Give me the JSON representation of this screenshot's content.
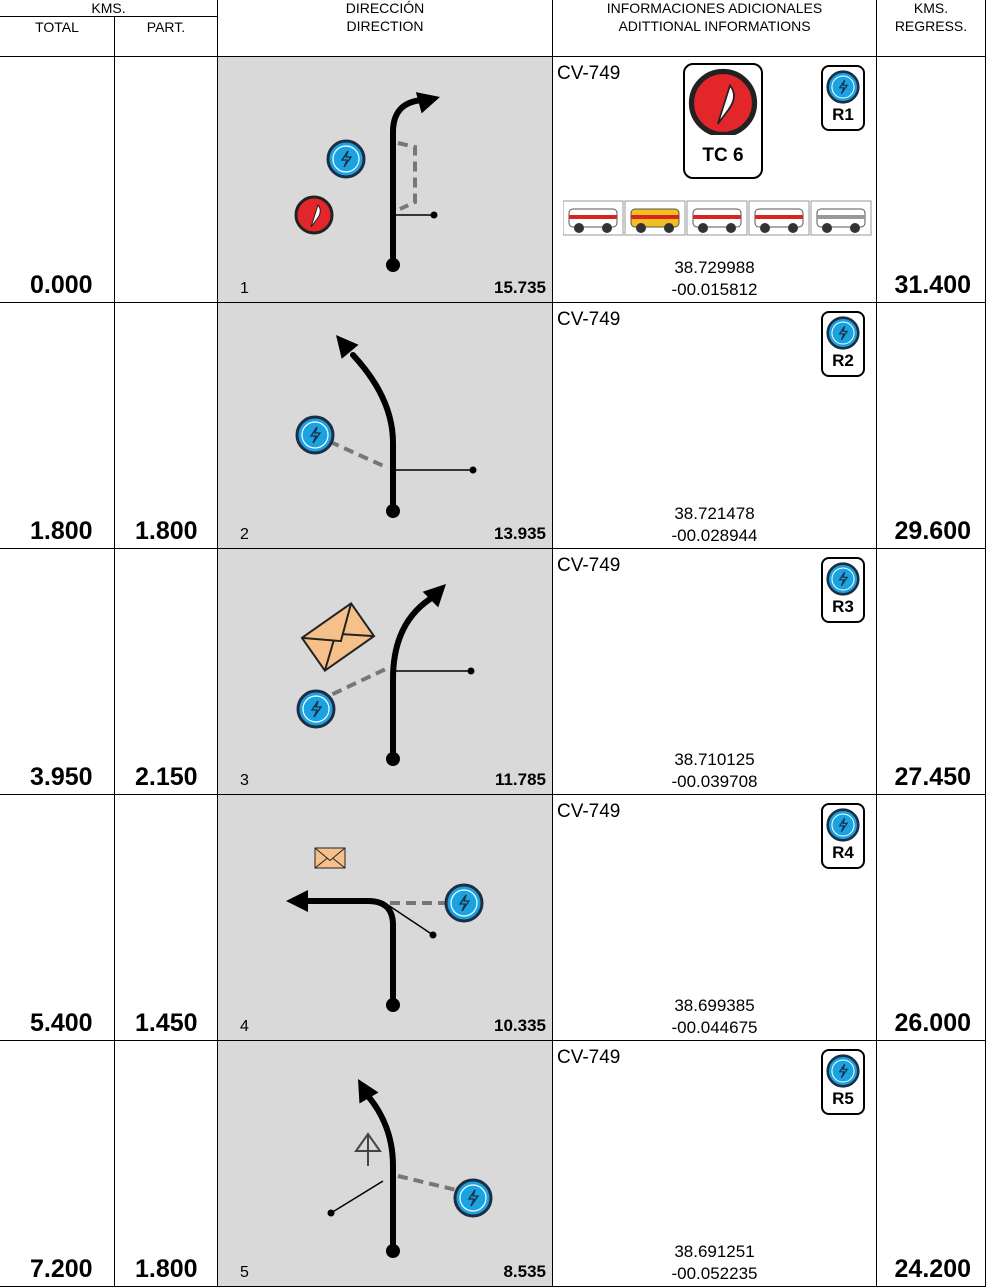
{
  "header": {
    "kms": "KMS.",
    "total": "TOTAL",
    "part": "PART.",
    "direction_es": "DIRECCIÓN",
    "direction_en": "DIRECTION",
    "info_es": "INFORMACIONES ADICIONALES",
    "info_en": "ADITTIONAL INFORMATIONS",
    "regress_top": "KMS.",
    "regress_bottom": "REGRESS."
  },
  "rows": [
    {
      "total": "0.000",
      "part": null,
      "number": "1",
      "remaining": "15.735",
      "road": "CV-749",
      "lat": "38.729988",
      "lon": "-00.015812",
      "radar": "R1",
      "control": "TC 6",
      "regress": "31.400"
    },
    {
      "total": "1.800",
      "part": "1.800",
      "number": "2",
      "remaining": "13.935",
      "road": "CV-749",
      "lat": "38.721478",
      "lon": "-00.028944",
      "radar": "R2",
      "regress": "29.600"
    },
    {
      "total": "3.950",
      "part": "2.150",
      "number": "3",
      "remaining": "11.785",
      "road": "CV-749",
      "lat": "38.710125",
      "lon": "-00.039708",
      "radar": "R3",
      "regress": "27.450"
    },
    {
      "total": "5.400",
      "part": "1.450",
      "number": "4",
      "remaining": "10.335",
      "road": "CV-749",
      "lat": "38.699385",
      "lon": "-00.044675",
      "radar": "R4",
      "regress": "26.000"
    },
    {
      "total": "7.200",
      "part": "1.800",
      "number": "5",
      "remaining": "8.535",
      "road": "CV-749",
      "lat": "38.691251",
      "lon": "-00.052235",
      "radar": "R5",
      "regress": "24.200"
    }
  ]
}
